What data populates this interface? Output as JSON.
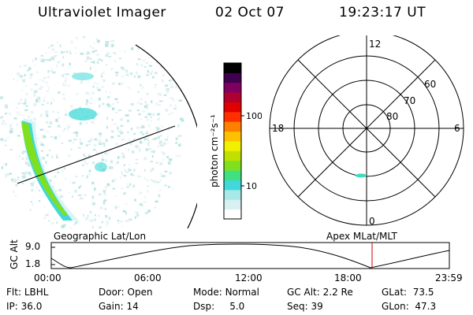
{
  "header": {
    "instrument": "Ultraviolet Imager",
    "date": "02 Oct 07",
    "time": "19:23:17 UT"
  },
  "colorbar": {
    "label": "photon cm⁻²s⁻¹",
    "ticks": [
      "100",
      "10"
    ],
    "scale": "log",
    "colors": [
      "#ffffff",
      "#d8f0f0",
      "#a8e8e8",
      "#40d8d8",
      "#40e080",
      "#80e020",
      "#c0e000",
      "#f0f000",
      "#ffc000",
      "#ff8000",
      "#ff3000",
      "#e00000",
      "#b00030",
      "#800060",
      "#400050",
      "#000000"
    ]
  },
  "polar": {
    "mlt_labels": {
      "top": "12",
      "bottom": "0",
      "left": "18",
      "right": "6"
    },
    "mlat_labels": [
      "60",
      "70",
      "80"
    ]
  },
  "panel_labels": {
    "left": "Geographic Lat/Lon",
    "right": "Apex MLat/MLT"
  },
  "altitude_plot": {
    "ylabel": "GC Alt",
    "yticks": [
      "9.0",
      "1.8"
    ],
    "xticks": [
      "00:00",
      "06:00",
      "12:00",
      "18:00",
      "23:59"
    ],
    "current_time_marker": "19:23"
  },
  "info": {
    "row1": [
      {
        "label": "Flt:",
        "value": "LBHL"
      },
      {
        "label": "Door:",
        "value": "Open"
      },
      {
        "label": "Mode:",
        "value": "Normal"
      },
      {
        "label": "GC Alt:",
        "value": "2.2 Re"
      },
      {
        "label": "GLat:",
        "value": "73.5"
      }
    ],
    "row2": [
      {
        "label": "IP:",
        "value": "36.0"
      },
      {
        "label": "Gain:",
        "value": "14"
      },
      {
        "label": "Dsp:",
        "value": "5.0"
      },
      {
        "label": "Seq:",
        "value": "39"
      },
      {
        "label": "GLon:",
        "value": "47.3"
      }
    ]
  }
}
